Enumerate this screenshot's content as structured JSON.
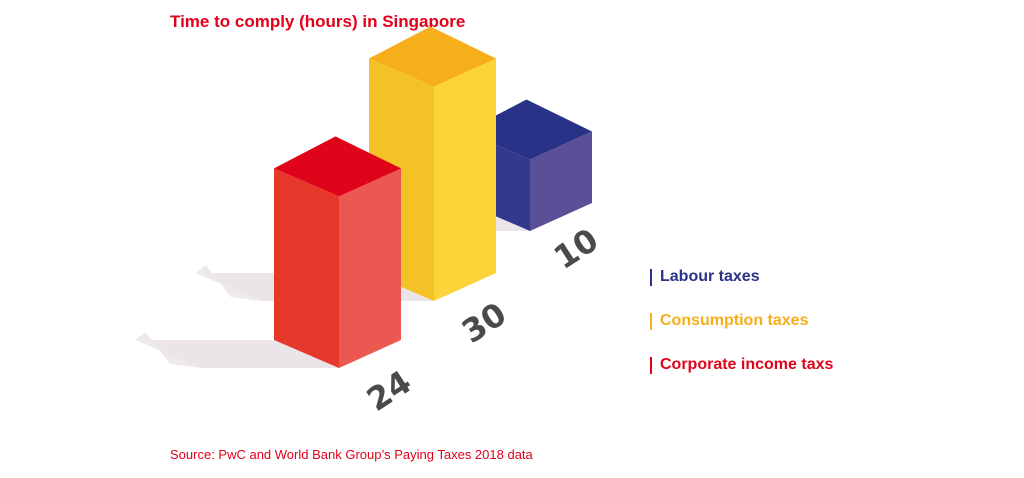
{
  "chart_data": {
    "type": "bar",
    "title": "Time to comply (hours) in Singapore",
    "categories": [
      "Corporate income taxs",
      "Consumption taxes",
      "Labour taxes"
    ],
    "values": [
      24,
      30,
      10
    ],
    "colors": {
      "Corporate income taxs": {
        "top": "#e0041b",
        "left": "#e6382a",
        "right": "#ea5851"
      },
      "Consumption taxes": {
        "top": "#f7ae1b",
        "left": "#f3c227",
        "right": "#fdd33a"
      },
      "Labour taxes": {
        "top": "#283286",
        "left": "#333a8c",
        "right": "#5b4f98"
      }
    },
    "legend": {
      "placement": "right",
      "entries": [
        {
          "label": "Labour taxes",
          "color": "#283286"
        },
        {
          "label": "Consumption taxes",
          "color": "#f7ae1b"
        },
        {
          "label": "Corporate income taxs",
          "color": "#e0041b"
        }
      ]
    },
    "source": "Source: PwC and World Bank Group’s Paying Taxes 2018 data"
  }
}
